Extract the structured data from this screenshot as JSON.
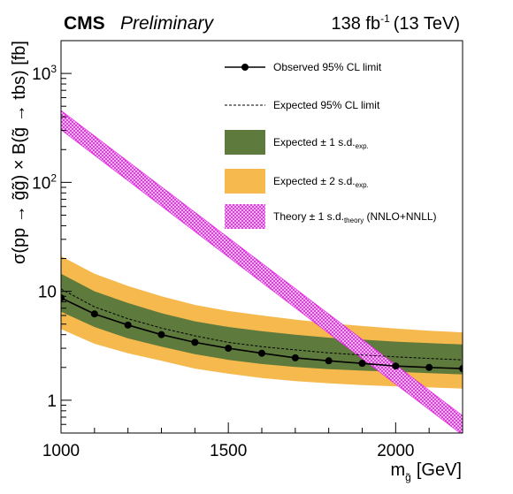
{
  "header": {
    "experiment": "CMS",
    "status": "Preliminary",
    "luminosity": "138 fb",
    "lumi_exp": "-1",
    "energy": "(13 TeV)"
  },
  "chart_data": {
    "type": "line",
    "xlabel": "m",
    "xlabel_sub": "g̃",
    "xlabel_unit": "[GeV]",
    "ylabel": "σ(pp → g̃g̃) × B(g̃ → tbs) [fb]",
    "xlim": [
      1000,
      2200
    ],
    "ylim": [
      0.5,
      2000
    ],
    "ylog": true,
    "x_ticks": [
      1000,
      1500,
      2000
    ],
    "y_ticks": [
      {
        "value": 1,
        "label": "1"
      },
      {
        "value": 10,
        "label": "10"
      },
      {
        "value": 100,
        "label": "10",
        "exp": "2"
      },
      {
        "value": 1000,
        "label": "10",
        "exp": "3"
      }
    ],
    "legend": [
      {
        "key": "observed",
        "text": "Observed 95% CL limit",
        "sub": "",
        "suffix": ""
      },
      {
        "key": "expected",
        "text": "Expected 95% CL limit",
        "sub": "",
        "suffix": ""
      },
      {
        "key": "band1",
        "text": "Expected ± 1 s.d.",
        "sub": "exp.",
        "suffix": ""
      },
      {
        "key": "band2",
        "text": "Expected ± 2 s.d.",
        "sub": "exp.",
        "suffix": ""
      },
      {
        "key": "theory",
        "text": "Theory ± 1 s.d.",
        "sub": "theory",
        "suffix": " (NNLO+NNLL)"
      }
    ],
    "colors": {
      "observed": "#000000",
      "expected": "#000000",
      "band1": "#5e7a3c",
      "band2": "#f5b94e",
      "theory": "#e829e8"
    },
    "x": [
      1000,
      1100,
      1200,
      1300,
      1400,
      1500,
      1600,
      1700,
      1800,
      1900,
      2000,
      2100,
      2200
    ],
    "observed": [
      8.7,
      6.2,
      4.9,
      4.0,
      3.4,
      3.0,
      2.7,
      2.45,
      2.3,
      2.18,
      2.06,
      2.0,
      1.95
    ],
    "expected": [
      10.5,
      7.2,
      5.6,
      4.6,
      3.9,
      3.4,
      3.1,
      2.9,
      2.72,
      2.6,
      2.5,
      2.42,
      2.35
    ],
    "band1_low": [
      6.5,
      4.7,
      3.7,
      3.1,
      2.65,
      2.35,
      2.15,
      2.02,
      1.93,
      1.87,
      1.82,
      1.77,
      1.73
    ],
    "band1_high": [
      14.5,
      10.0,
      7.8,
      6.3,
      5.3,
      4.7,
      4.3,
      4.0,
      3.75,
      3.6,
      3.45,
      3.35,
      3.25
    ],
    "band2_low": [
      4.5,
      3.3,
      2.7,
      2.3,
      1.95,
      1.75,
      1.6,
      1.5,
      1.43,
      1.38,
      1.34,
      1.31,
      1.28
    ],
    "band2_high": [
      21.0,
      14.5,
      11.2,
      9.0,
      7.5,
      6.6,
      6.0,
      5.5,
      5.1,
      4.8,
      4.55,
      4.35,
      4.2
    ],
    "theory_x": [
      1000,
      2200
    ],
    "theory_central": [
      380,
      0.6
    ],
    "theory_rel_unc": 0.2
  }
}
